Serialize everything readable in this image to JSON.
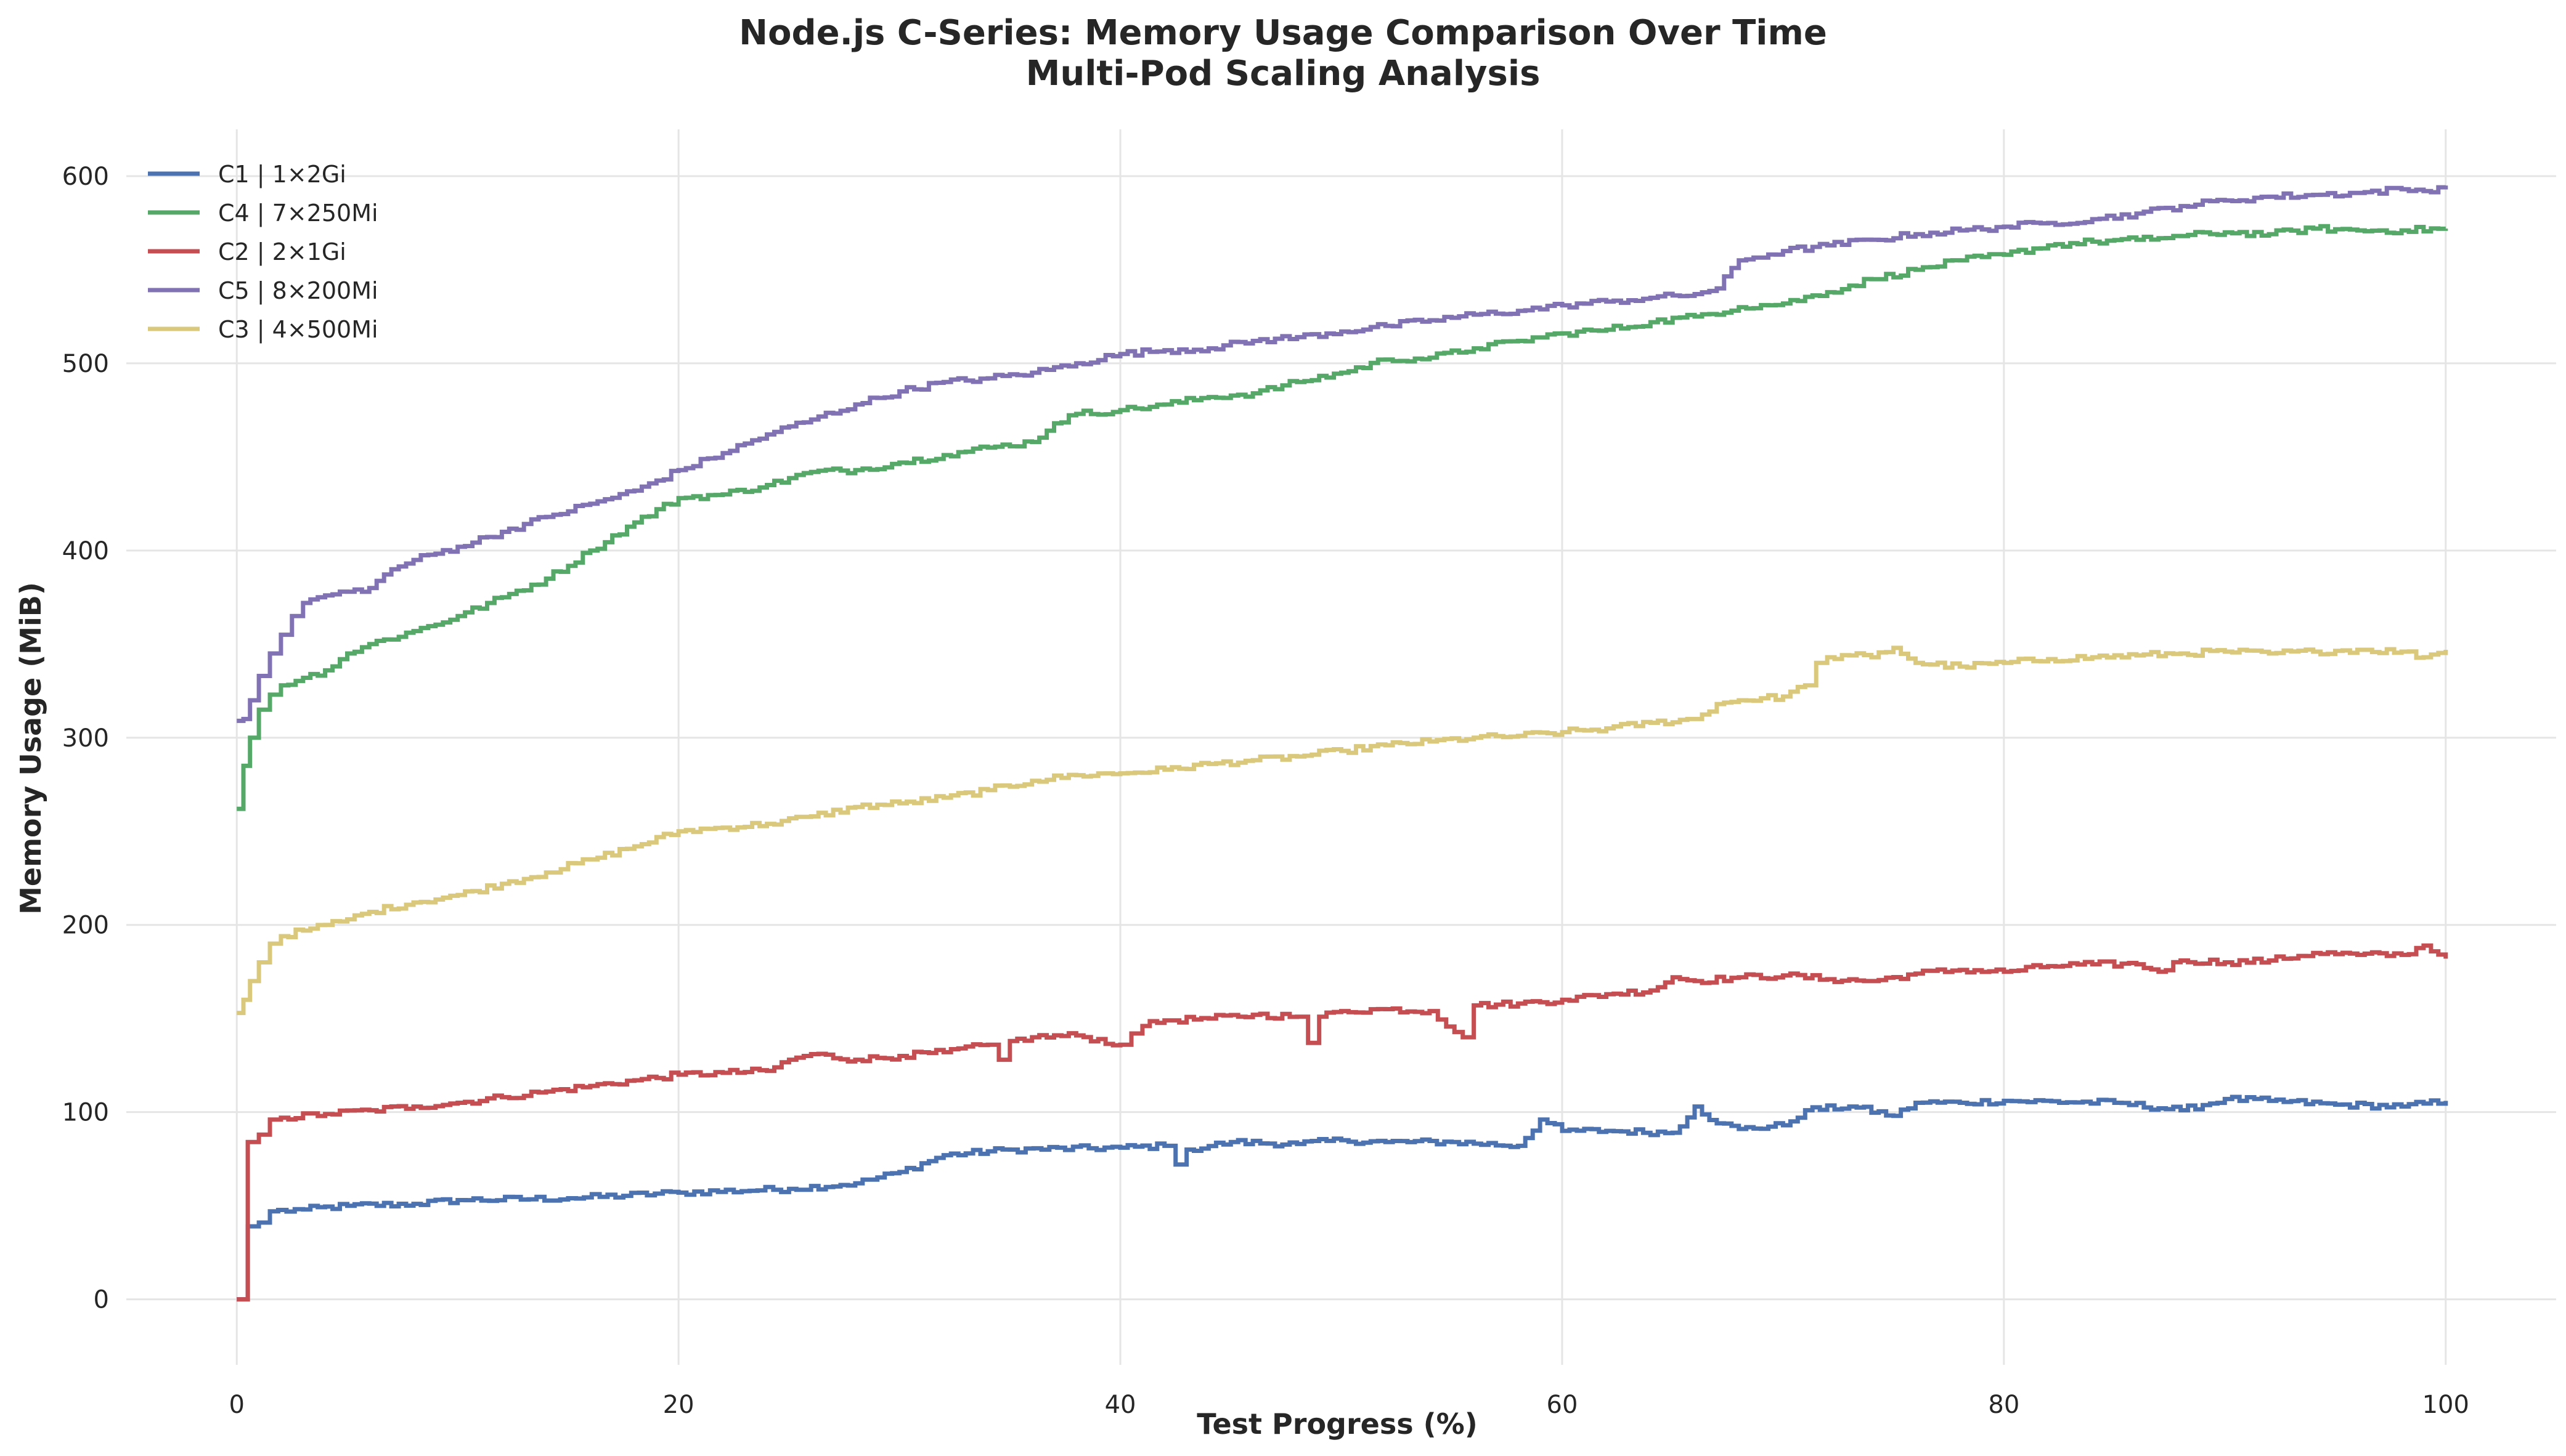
{
  "chart_data": {
    "type": "line",
    "title": "Node.js C-Series: Memory Usage Comparison Over Time",
    "subtitle": "Multi-Pod Scaling Analysis",
    "xlabel": "Test Progress (%)",
    "ylabel": "Memory Usage (MiB)",
    "xlim": [
      -5,
      105
    ],
    "ylim": [
      -35,
      625
    ],
    "xticks": [
      0,
      20,
      40,
      60,
      80,
      100
    ],
    "yticks": [
      0,
      100,
      200,
      300,
      400,
      500,
      600
    ],
    "grid": true,
    "legend_position": "top-left",
    "series": [
      {
        "name": "C1 | 1×2Gi",
        "color": "#4c72b0",
        "x": [
          0,
          0.3,
          0.5,
          1,
          1.5,
          3,
          5,
          8,
          10,
          15,
          20,
          25,
          28,
          30,
          32,
          35,
          40,
          42,
          42.5,
          43,
          45,
          48,
          50,
          52,
          55,
          58,
          59,
          60,
          62,
          65,
          66,
          67,
          68,
          70,
          71,
          73,
          75,
          76,
          78,
          80,
          85,
          88,
          90,
          92,
          95,
          98,
          100
        ],
        "y": [
          0,
          0,
          39,
          41,
          47,
          48,
          50,
          51,
          53,
          54,
          57,
          59,
          62,
          68,
          77,
          80,
          81,
          82,
          72,
          80,
          84,
          83,
          85,
          84,
          84,
          82,
          96,
          90,
          90,
          89,
          103,
          94,
          91,
          93,
          101,
          103,
          98,
          105,
          105,
          106,
          105,
          101,
          107,
          106,
          104,
          103,
          106
        ]
      },
      {
        "name": "C4 | 7×250Mi",
        "color": "#55a868",
        "x": [
          0,
          0.3,
          0.6,
          1,
          1.5,
          2,
          3,
          4,
          5,
          6,
          8,
          10,
          12,
          14,
          16,
          18,
          20,
          22,
          24,
          26,
          28,
          30,
          32,
          34,
          36,
          37,
          38,
          40,
          42,
          44,
          46,
          48,
          50,
          52,
          54,
          56,
          58,
          60,
          62,
          64,
          66,
          68,
          70,
          72,
          74,
          76,
          78,
          80,
          82,
          84,
          86,
          88,
          90,
          92,
          94,
          96,
          98,
          100
        ],
        "y": [
          262,
          285,
          300,
          315,
          323,
          328,
          332,
          336,
          345,
          350,
          357,
          365,
          375,
          385,
          400,
          415,
          428,
          430,
          435,
          442,
          443,
          447,
          451,
          455,
          458,
          468,
          473,
          475,
          478,
          482,
          484,
          490,
          495,
          502,
          503,
          508,
          512,
          516,
          518,
          522,
          525,
          530,
          532,
          538,
          545,
          550,
          555,
          558,
          563,
          565,
          566,
          568,
          570,
          569,
          572,
          571,
          571,
          572
        ]
      },
      {
        "name": "C2 | 2×1Gi",
        "color": "#c44e52",
        "x": [
          0,
          0.3,
          0.5,
          1,
          1.5,
          2,
          4,
          6,
          8,
          10,
          12,
          14,
          16,
          18,
          20,
          22,
          24,
          25,
          26,
          28,
          30,
          32,
          34,
          34.5,
          35,
          36,
          38,
          40,
          40.5,
          41,
          42,
          44,
          46,
          48,
          48.5,
          49,
          50,
          52,
          54,
          55.5,
          56,
          58,
          60,
          62,
          64,
          65,
          66,
          68,
          70,
          72,
          74,
          76,
          78,
          80,
          82,
          84,
          86,
          87,
          88,
          90,
          92,
          94,
          96,
          98,
          99,
          100
        ],
        "y": [
          0,
          0,
          84,
          88,
          96,
          97,
          99,
          101,
          103,
          105,
          108,
          111,
          114,
          117,
          120,
          121,
          122,
          128,
          131,
          128,
          130,
          132,
          136,
          128,
          138,
          140,
          141,
          136,
          142,
          146,
          149,
          150,
          152,
          151,
          137,
          151,
          154,
          155,
          154,
          140,
          157,
          158,
          160,
          163,
          165,
          172,
          170,
          172,
          173,
          171,
          170,
          174,
          176,
          175,
          178,
          179,
          179,
          175,
          181,
          180,
          181,
          185,
          184,
          184,
          189,
          182
        ]
      },
      {
        "name": "C5 | 8×200Mi",
        "color": "#8172b3",
        "x": [
          0,
          0.3,
          0.6,
          1,
          1.5,
          2,
          2.5,
          3,
          4,
          5,
          6,
          7,
          8,
          10,
          12,
          14,
          16,
          18,
          20,
          22,
          24,
          26,
          28,
          30,
          32,
          34,
          36,
          38,
          40,
          42,
          44,
          46,
          48,
          50,
          52,
          54,
          56,
          58,
          60,
          62,
          64,
          66,
          67,
          68,
          70,
          72,
          74,
          76,
          78,
          80,
          82,
          84,
          86,
          88,
          90,
          92,
          94,
          96,
          98,
          99,
          100
        ],
        "y": [
          309,
          310,
          320,
          333,
          345,
          355,
          365,
          372,
          376,
          378,
          380,
          390,
          395,
          402,
          410,
          418,
          425,
          432,
          443,
          452,
          462,
          470,
          478,
          485,
          490,
          492,
          495,
          500,
          505,
          507,
          508,
          512,
          514,
          517,
          520,
          523,
          526,
          528,
          531,
          533,
          535,
          537,
          540,
          555,
          560,
          563,
          566,
          569,
          571,
          573,
          575,
          577,
          580,
          584,
          587,
          589,
          590,
          591,
          593,
          592,
          595
        ]
      },
      {
        "name": "C3 | 4×500Mi",
        "color": "#dac97d",
        "x": [
          0,
          0.3,
          0.6,
          1,
          1.5,
          2,
          3,
          4,
          5,
          6,
          8,
          10,
          12,
          14,
          16,
          18,
          20,
          22,
          24,
          26,
          28,
          30,
          32,
          34,
          36,
          38,
          40,
          42,
          44,
          46,
          48,
          50,
          52,
          54,
          56,
          58,
          60,
          62,
          64,
          66,
          67,
          68,
          70,
          71,
          71.5,
          72,
          73,
          74,
          75,
          76,
          78,
          80,
          82,
          84,
          86,
          88,
          90,
          92,
          94,
          96,
          98,
          99,
          100
        ],
        "y": [
          153,
          160,
          170,
          180,
          190,
          194,
          197,
          200,
          203,
          207,
          212,
          216,
          222,
          228,
          235,
          242,
          250,
          252,
          254,
          258,
          263,
          265,
          268,
          272,
          277,
          280,
          281,
          283,
          286,
          288,
          290,
          293,
          296,
          298,
          300,
          301,
          303,
          305,
          308,
          310,
          318,
          320,
          322,
          328,
          340,
          343,
          344,
          343,
          348,
          340,
          338,
          340,
          342,
          343,
          344,
          345,
          346,
          345,
          346,
          347,
          346,
          343,
          347
        ]
      }
    ]
  }
}
